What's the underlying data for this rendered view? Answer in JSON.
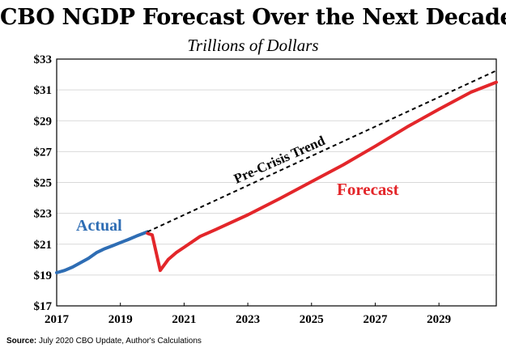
{
  "chart_data": {
    "type": "line",
    "title": "CBO NGDP Forecast Over the Next Decade",
    "subtitle": "Trillions of Dollars",
    "source_label": "Source:",
    "source_text": "July 2020 CBO Update, Author's Calculations",
    "xlim": [
      2017,
      2030.8
    ],
    "ylim": [
      17,
      33
    ],
    "x_ticks": [
      2017,
      2019,
      2021,
      2023,
      2025,
      2027,
      2029
    ],
    "y_ticks": [
      17,
      19,
      21,
      23,
      25,
      27,
      29,
      31,
      33
    ],
    "y_tick_labels": [
      "$17",
      "$19",
      "$21",
      "$23",
      "$25",
      "$27",
      "$29",
      "$31",
      "$33"
    ],
    "series": [
      {
        "name": "Actual",
        "color": "#2e6db4",
        "style": "solid",
        "x": [
          2017.0,
          2017.25,
          2017.5,
          2017.75,
          2018.0,
          2018.25,
          2018.5,
          2018.75,
          2019.0,
          2019.25,
          2019.5,
          2019.75,
          2019.85
        ],
        "y": [
          19.15,
          19.3,
          19.52,
          19.8,
          20.08,
          20.45,
          20.7,
          20.9,
          21.1,
          21.3,
          21.52,
          21.72,
          21.8
        ]
      },
      {
        "name": "Pre-Crisis Trend",
        "color": "#000000",
        "style": "dashed",
        "x": [
          2019.85,
          2030.8
        ],
        "y": [
          21.8,
          32.25
        ]
      },
      {
        "name": "Forecast",
        "color": "#e3262a",
        "style": "solid",
        "x": [
          2019.85,
          2020.0,
          2020.25,
          2020.5,
          2020.75,
          2021.0,
          2021.5,
          2022.0,
          2023.0,
          2024.0,
          2025.0,
          2026.0,
          2027.0,
          2028.0,
          2029.0,
          2030.0,
          2030.8
        ],
        "y": [
          21.7,
          21.6,
          19.3,
          20.0,
          20.45,
          20.8,
          21.5,
          21.95,
          22.9,
          23.95,
          25.05,
          26.15,
          27.35,
          28.6,
          29.75,
          30.85,
          31.5
        ]
      }
    ],
    "annotations": [
      {
        "text": "Actual",
        "color": "#2e6db4"
      },
      {
        "text": "Pre-Crisis Trend",
        "color": "#000000"
      },
      {
        "text": "Forecast",
        "color": "#e3262a"
      }
    ]
  }
}
